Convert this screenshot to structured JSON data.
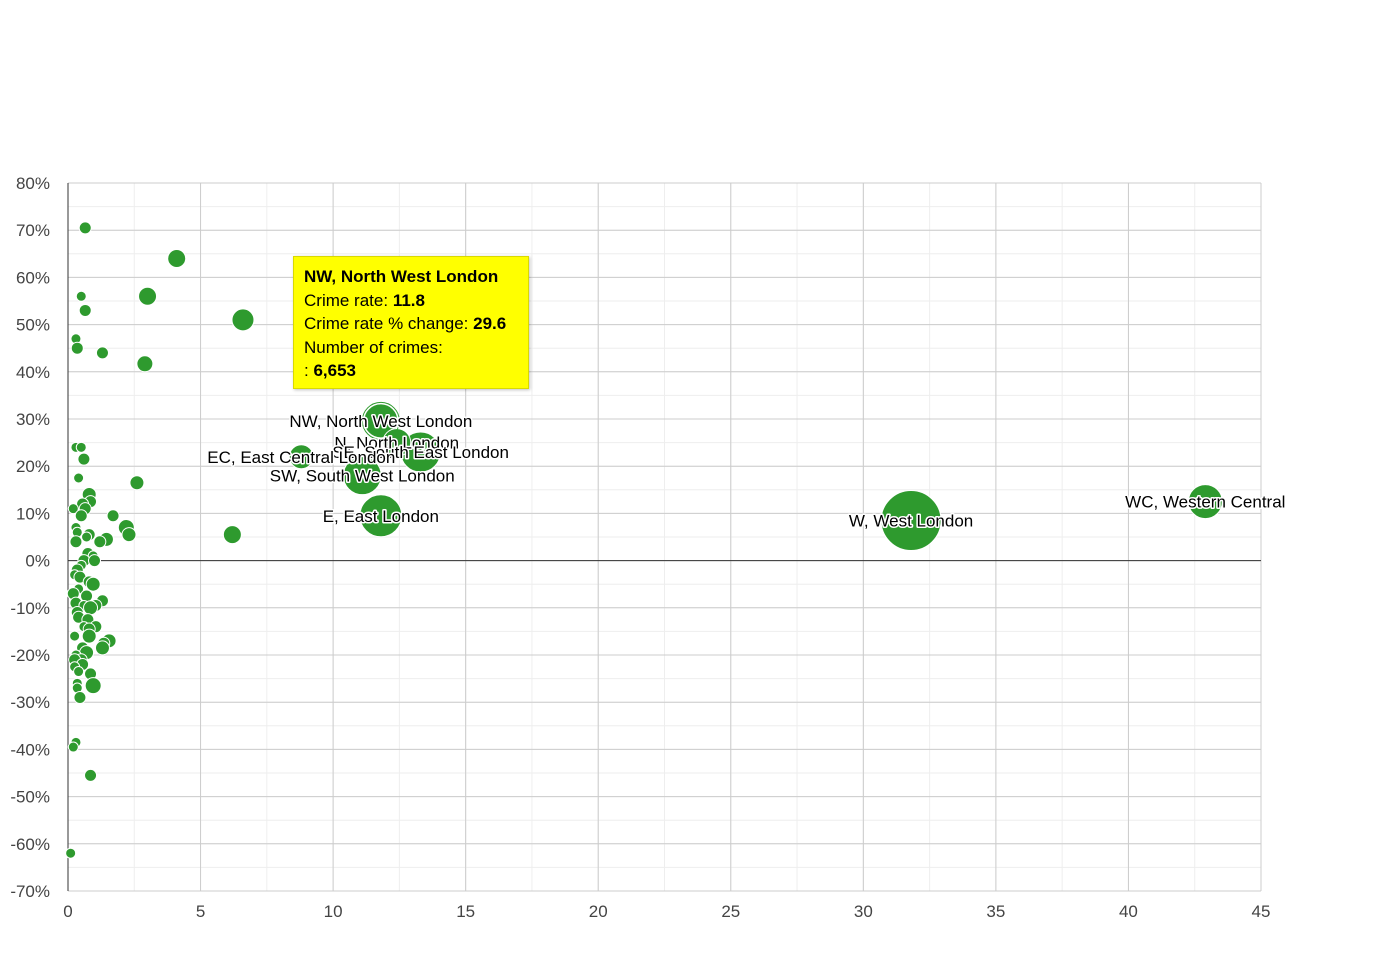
{
  "chart_data": {
    "type": "scatter",
    "subtype": "bubble",
    "title": "",
    "xlabel": "",
    "ylabel": "",
    "xlim": [
      0,
      45
    ],
    "ylim": [
      -70,
      80
    ],
    "x_ticks": [
      0,
      5,
      10,
      15,
      20,
      25,
      30,
      35,
      40,
      45
    ],
    "y_ticks": [
      80,
      70,
      60,
      50,
      40,
      30,
      20,
      10,
      0,
      -10,
      -20,
      -30,
      -40,
      -50,
      -60,
      -70
    ],
    "y_tick_labels": [
      "80%",
      "70%",
      "60%",
      "50%",
      "40%",
      "30%",
      "20%",
      "10%",
      "0%",
      "-10%",
      "-20%",
      "-30%",
      "-40%",
      "-50%",
      "-60%",
      "-70%"
    ],
    "grid": true,
    "legend": "none",
    "colors": {
      "bubble": "#2e9a2e",
      "bubble_stroke": "#ffffff",
      "tooltip_bg": "#ffff00"
    },
    "labeled_points": [
      {
        "label": "NW, North West London",
        "x": 11.8,
        "y": 29.6,
        "r": 17
      },
      {
        "label": "N, North London",
        "x": 12.4,
        "y": 25.0,
        "r": 14
      },
      {
        "label": "SE, South East London",
        "x": 13.3,
        "y": 23.0,
        "r": 20
      },
      {
        "label": "EC, East Central London",
        "x": 8.8,
        "y": 22.0,
        "r": 12
      },
      {
        "label": "SW, South West London",
        "x": 11.1,
        "y": 18.0,
        "r": 19
      },
      {
        "label": "E, East London",
        "x": 11.8,
        "y": 9.5,
        "r": 21
      },
      {
        "label": "W, West London",
        "x": 31.8,
        "y": 8.5,
        "r": 30
      },
      {
        "label": "WC, Western Central",
        "x": 42.9,
        "y": 12.5,
        "r": 17
      }
    ],
    "points": [
      {
        "x": 0.65,
        "y": 70.5,
        "r": 6
      },
      {
        "x": 4.1,
        "y": 64.0,
        "r": 9
      },
      {
        "x": 3.0,
        "y": 56.0,
        "r": 9
      },
      {
        "x": 0.5,
        "y": 56.0,
        "r": 5
      },
      {
        "x": 0.65,
        "y": 53.0,
        "r": 6
      },
      {
        "x": 6.6,
        "y": 51.0,
        "r": 11
      },
      {
        "x": 0.3,
        "y": 47.0,
        "r": 5
      },
      {
        "x": 0.35,
        "y": 45.0,
        "r": 6
      },
      {
        "x": 1.3,
        "y": 44.0,
        "r": 6
      },
      {
        "x": 2.9,
        "y": 41.7,
        "r": 8
      },
      {
        "x": 0.3,
        "y": 24.0,
        "r": 5
      },
      {
        "x": 0.5,
        "y": 24.0,
        "r": 5
      },
      {
        "x": 0.6,
        "y": 21.5,
        "r": 6
      },
      {
        "x": 0.4,
        "y": 17.5,
        "r": 5
      },
      {
        "x": 2.6,
        "y": 16.5,
        "r": 7
      },
      {
        "x": 0.8,
        "y": 14.0,
        "r": 7
      },
      {
        "x": 0.85,
        "y": 12.5,
        "r": 6
      },
      {
        "x": 0.55,
        "y": 12.0,
        "r": 6
      },
      {
        "x": 0.2,
        "y": 11.0,
        "r": 5
      },
      {
        "x": 0.65,
        "y": 11.0,
        "r": 6
      },
      {
        "x": 0.5,
        "y": 9.5,
        "r": 6
      },
      {
        "x": 1.7,
        "y": 9.5,
        "r": 6
      },
      {
        "x": 2.2,
        "y": 7.0,
        "r": 8
      },
      {
        "x": 0.3,
        "y": 7.0,
        "r": 5
      },
      {
        "x": 0.35,
        "y": 6.0,
        "r": 5
      },
      {
        "x": 0.8,
        "y": 5.5,
        "r": 6
      },
      {
        "x": 6.2,
        "y": 5.5,
        "r": 9
      },
      {
        "x": 2.3,
        "y": 5.5,
        "r": 7
      },
      {
        "x": 0.7,
        "y": 5.0,
        "r": 5
      },
      {
        "x": 1.45,
        "y": 4.5,
        "r": 7
      },
      {
        "x": 1.2,
        "y": 4.0,
        "r": 6
      },
      {
        "x": 0.3,
        "y": 4.0,
        "r": 6
      },
      {
        "x": 0.75,
        "y": 1.5,
        "r": 6
      },
      {
        "x": 0.95,
        "y": 1.0,
        "r": 5
      },
      {
        "x": 0.6,
        "y": 0.0,
        "r": 6
      },
      {
        "x": 1.0,
        "y": 0.0,
        "r": 6
      },
      {
        "x": 0.5,
        "y": -1.0,
        "r": 5
      },
      {
        "x": 0.35,
        "y": -2.0,
        "r": 6
      },
      {
        "x": 0.25,
        "y": -3.0,
        "r": 5
      },
      {
        "x": 0.45,
        "y": -3.5,
        "r": 6
      },
      {
        "x": 0.8,
        "y": -4.5,
        "r": 6
      },
      {
        "x": 0.95,
        "y": -5.0,
        "r": 7
      },
      {
        "x": 0.4,
        "y": -6.0,
        "r": 5
      },
      {
        "x": 0.2,
        "y": -7.0,
        "r": 6
      },
      {
        "x": 0.7,
        "y": -7.5,
        "r": 6
      },
      {
        "x": 1.3,
        "y": -8.5,
        "r": 6
      },
      {
        "x": 0.3,
        "y": -9.0,
        "r": 6
      },
      {
        "x": 0.6,
        "y": -9.5,
        "r": 5
      },
      {
        "x": 1.05,
        "y": -9.5,
        "r": 6
      },
      {
        "x": 0.85,
        "y": -10.0,
        "r": 7
      },
      {
        "x": 0.35,
        "y": -11.0,
        "r": 6
      },
      {
        "x": 0.4,
        "y": -12.0,
        "r": 6
      },
      {
        "x": 0.75,
        "y": -12.5,
        "r": 6
      },
      {
        "x": 0.6,
        "y": -14.0,
        "r": 5
      },
      {
        "x": 1.05,
        "y": -14.0,
        "r": 6
      },
      {
        "x": 0.8,
        "y": -14.5,
        "r": 6
      },
      {
        "x": 0.25,
        "y": -16.0,
        "r": 5
      },
      {
        "x": 0.8,
        "y": -16.0,
        "r": 7
      },
      {
        "x": 1.55,
        "y": -17.0,
        "r": 7
      },
      {
        "x": 1.35,
        "y": -17.5,
        "r": 6
      },
      {
        "x": 1.3,
        "y": -18.5,
        "r": 7
      },
      {
        "x": 0.55,
        "y": -18.5,
        "r": 6
      },
      {
        "x": 0.7,
        "y": -19.5,
        "r": 7
      },
      {
        "x": 0.3,
        "y": -20.0,
        "r": 5
      },
      {
        "x": 0.5,
        "y": -21.0,
        "r": 6
      },
      {
        "x": 0.25,
        "y": -21.0,
        "r": 6
      },
      {
        "x": 0.55,
        "y": -22.0,
        "r": 6
      },
      {
        "x": 0.25,
        "y": -22.5,
        "r": 5
      },
      {
        "x": 0.4,
        "y": -23.5,
        "r": 5
      },
      {
        "x": 0.85,
        "y": -24.0,
        "r": 6
      },
      {
        "x": 0.35,
        "y": -26.0,
        "r": 5
      },
      {
        "x": 0.95,
        "y": -26.5,
        "r": 8
      },
      {
        "x": 0.35,
        "y": -27.0,
        "r": 5
      },
      {
        "x": 0.45,
        "y": -29.0,
        "r": 6
      },
      {
        "x": 0.3,
        "y": -38.5,
        "r": 5
      },
      {
        "x": 0.2,
        "y": -39.5,
        "r": 5
      },
      {
        "x": 0.85,
        "y": -45.5,
        "r": 6
      },
      {
        "x": 0.1,
        "y": -62.0,
        "r": 5
      }
    ]
  },
  "tooltip": {
    "title": "NW, North West London",
    "rate_label": "Crime rate:",
    "rate_value": "11.8",
    "change_label": "Crime rate % change:",
    "change_value": "29.6",
    "count_label": "Number of crimes:",
    "count_prefix": ":",
    "count_value": "6,653"
  }
}
